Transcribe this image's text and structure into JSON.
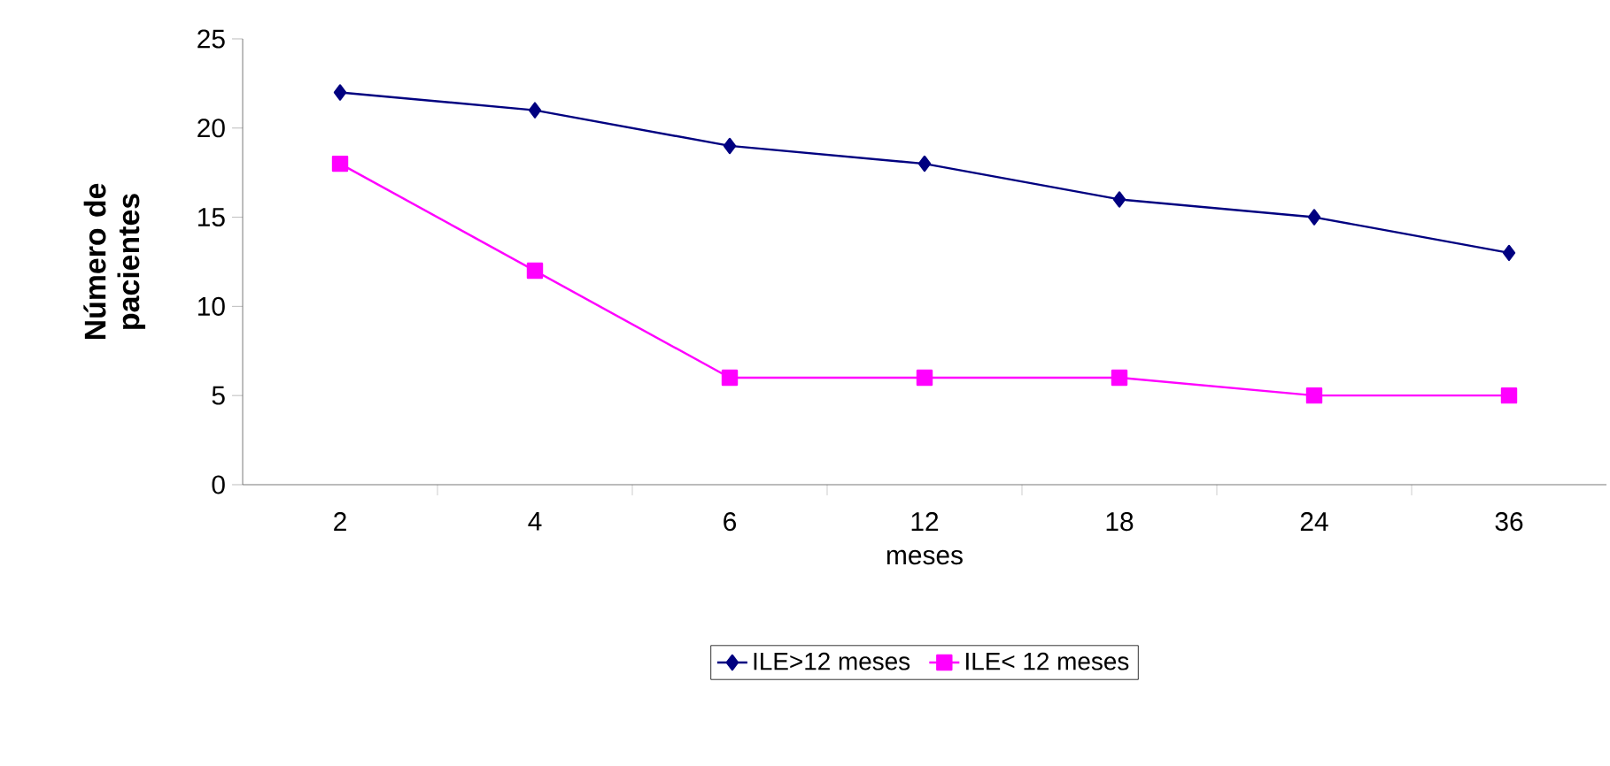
{
  "chart_data": {
    "type": "line",
    "xlabel": "meses",
    "ylabel": "Número de pacientes",
    "categories": [
      "2",
      "4",
      "6",
      "12",
      "18",
      "24",
      "36"
    ],
    "series": [
      {
        "name": "ILE>12 meses",
        "color": "#000080",
        "marker": "diamond",
        "values": [
          22,
          21,
          19,
          18,
          16,
          15,
          13
        ]
      },
      {
        "name": "ILE< 12 meses",
        "color": "#ff00ff",
        "marker": "square",
        "values": [
          18,
          12,
          6,
          6,
          6,
          5,
          5
        ]
      }
    ],
    "ylim": [
      0,
      25
    ],
    "yticks": [
      0,
      5,
      10,
      15,
      20,
      25
    ],
    "grid": false,
    "legend": "bottom"
  }
}
